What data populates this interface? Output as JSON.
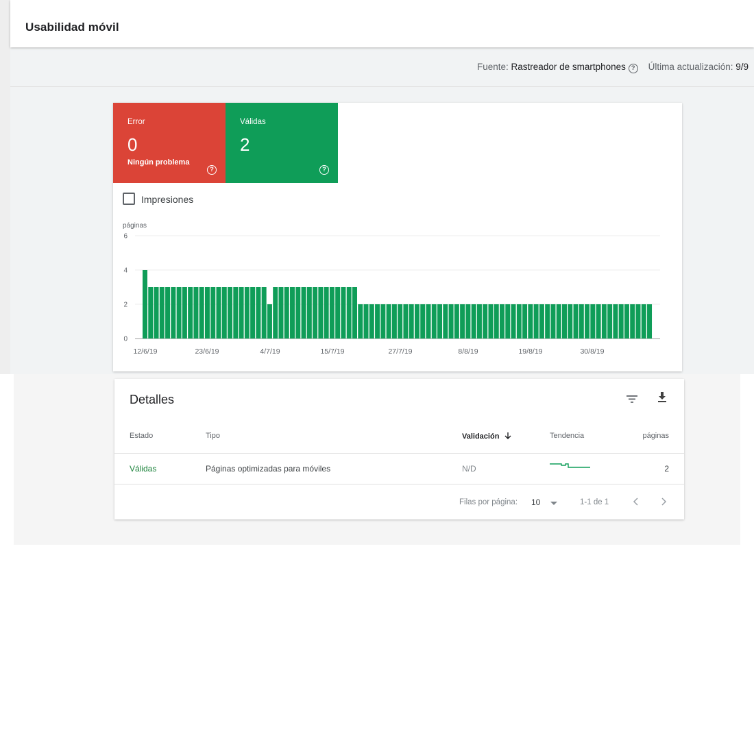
{
  "header": {
    "title": "Usabilidad móvil"
  },
  "source_bar": {
    "source_label": "Fuente:",
    "source_value": "Rastreador de smartphones",
    "updated_label": "Última actualización:",
    "updated_value": "9/9"
  },
  "tiles": {
    "error": {
      "label": "Error",
      "value": "0",
      "sub": "Ningún problema",
      "color": "#db4437"
    },
    "valid": {
      "label": "Válidas",
      "value": "2",
      "color": "#0f9d58"
    }
  },
  "impressions": {
    "label": "Impresiones",
    "checked": false
  },
  "chart_data": {
    "type": "bar",
    "ylabel": "páginas",
    "ylim": [
      0,
      6
    ],
    "yticks": [
      0,
      2,
      4,
      6
    ],
    "xtick_labels": [
      "12/6/19",
      "23/6/19",
      "4/7/19",
      "15/7/19",
      "27/7/19",
      "8/8/19",
      "19/8/19",
      "30/8/19"
    ],
    "bar_color": "#0f9d58",
    "grid": true,
    "values": [
      4,
      3,
      3,
      3,
      3,
      3,
      3,
      3,
      3,
      3,
      3,
      3,
      3,
      3,
      3,
      3,
      3,
      3,
      3,
      3,
      3,
      3,
      2,
      3,
      3,
      3,
      3,
      3,
      3,
      3,
      3,
      3,
      3,
      3,
      3,
      3,
      3,
      3,
      2,
      2,
      2,
      2,
      2,
      2,
      2,
      2,
      2,
      2,
      2,
      2,
      2,
      2,
      2,
      2,
      2,
      2,
      2,
      2,
      2,
      2,
      2,
      2,
      2,
      2,
      2,
      2,
      2,
      2,
      2,
      2,
      2,
      2,
      2,
      2,
      2,
      2,
      2,
      2,
      2,
      2,
      2,
      2,
      2,
      2,
      2,
      2,
      2,
      2,
      2,
      2
    ]
  },
  "details": {
    "title": "Detalles",
    "columns": {
      "estado": "Estado",
      "tipo": "Tipo",
      "validacion": "Validación",
      "tendencia": "Tendencia",
      "paginas": "páginas"
    },
    "rows": [
      {
        "estado": "Válidas",
        "tipo": "Páginas optimizadas para móviles",
        "validacion": "N/D",
        "paginas": "2"
      }
    ],
    "footer": {
      "rows_per_page_label": "Filas por página:",
      "rows_per_page": "10",
      "range": "1-1 de 1"
    }
  }
}
